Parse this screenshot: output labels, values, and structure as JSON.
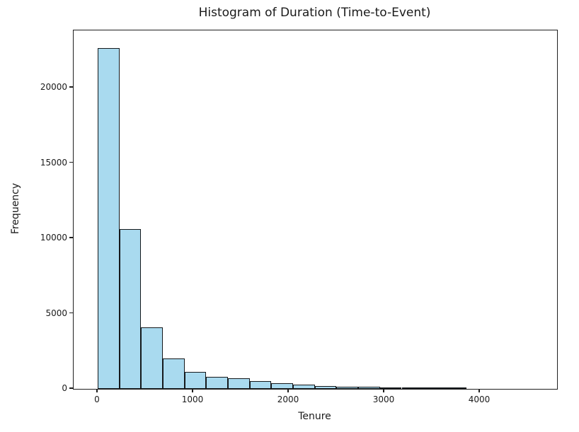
{
  "figure": {
    "title": "Histogram of Duration (Time-to-Event)"
  },
  "chart_data": {
    "type": "bar",
    "subtype": "histogram",
    "title": "Histogram of Duration (Time-to-Event)",
    "xlabel": "Tenure",
    "ylabel": "Frequency",
    "bar_fill_color": "#a9daef",
    "bar_edge_color": "#15191c",
    "grid": false,
    "legend_position": "none",
    "bin_width": 227.2,
    "bin_edges": [
      0,
      227.2,
      454.4,
      681.6,
      908.8,
      1136.0,
      1363.2,
      1590.4,
      1817.6,
      2044.8,
      2272.0,
      2499.2,
      2726.4,
      2953.6,
      3180.8,
      3408.0,
      3635.2,
      3862.4
    ],
    "values": [
      22650,
      10600,
      4100,
      2020,
      1130,
      800,
      690,
      540,
      390,
      300,
      180,
      150,
      150,
      90,
      55,
      45,
      30
    ],
    "xticks": [
      0,
      1000,
      2000,
      3000,
      4000
    ],
    "yticks": [
      0,
      5000,
      10000,
      15000,
      20000
    ],
    "xlim": [
      -252,
      4807
    ],
    "ylim": [
      0,
      23800
    ]
  }
}
